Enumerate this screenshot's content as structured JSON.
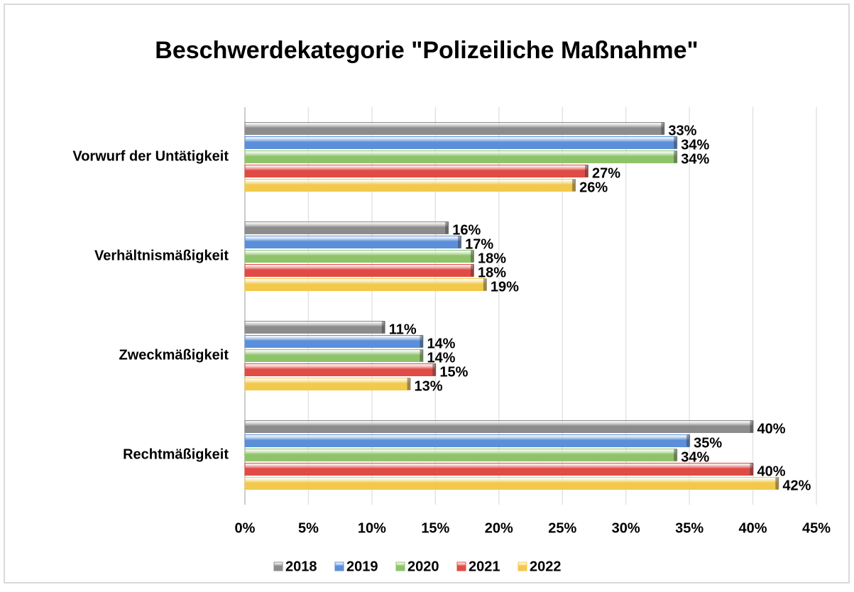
{
  "chart_data": {
    "type": "hbar",
    "title": "Beschwerdekategorie \"Polizeiliche Maßnahme\"",
    "categories": [
      "Vorwurf der Untätigkeit",
      "Verhältnismäßigkeit",
      "Zweckmäßigkeit",
      "Rechtmäßigkeit"
    ],
    "series": [
      {
        "name": "2018",
        "color": "#8c8c8c",
        "values": [
          33,
          16,
          11,
          40
        ],
        "value_labels": [
          "33%",
          "16%",
          "11%",
          "40%"
        ]
      },
      {
        "name": "2019",
        "color": "#5b8fd9",
        "values": [
          34,
          17,
          14,
          35
        ],
        "value_labels": [
          "34%",
          "17%",
          "14%",
          "35%"
        ]
      },
      {
        "name": "2020",
        "color": "#8fc36b",
        "values": [
          34,
          18,
          14,
          34
        ],
        "value_labels": [
          "34%",
          "18%",
          "14%",
          "34%"
        ]
      },
      {
        "name": "2021",
        "color": "#e04b45",
        "values": [
          27,
          18,
          15,
          40
        ],
        "value_labels": [
          "27%",
          "18%",
          "15%",
          "40%"
        ]
      },
      {
        "name": "2022",
        "color": "#f2c94c",
        "values": [
          26,
          19,
          13,
          42
        ],
        "value_labels": [
          "26%",
          "19%",
          "13%",
          "42%"
        ]
      }
    ],
    "xlim": [
      0,
      45
    ],
    "xticks": [
      {
        "value": 0,
        "label": "0%"
      },
      {
        "value": 5,
        "label": "5%"
      },
      {
        "value": 10,
        "label": "10%"
      },
      {
        "value": 15,
        "label": "15%"
      },
      {
        "value": 20,
        "label": "20%"
      },
      {
        "value": 25,
        "label": "25%"
      },
      {
        "value": 30,
        "label": "30%"
      },
      {
        "value": 35,
        "label": "35%"
      },
      {
        "value": 40,
        "label": "40%"
      },
      {
        "value": 45,
        "label": "45%"
      }
    ],
    "grid": true,
    "legend": "bottom"
  }
}
